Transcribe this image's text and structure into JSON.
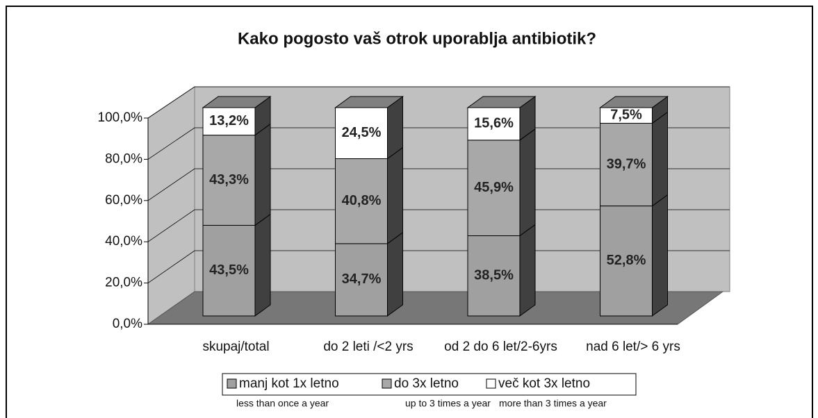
{
  "chart_data": {
    "type": "bar3d_stacked",
    "title": "Kako pogosto vaš otrok uporablja antibiotik?",
    "categories": [
      "skupaj/total",
      "do 2 leti /<2 yrs",
      "od 2 do 6 let/2-6yrs",
      "nad 6 let/> 6 yrs"
    ],
    "series": [
      {
        "name": "manj kot 1x letno",
        "color": "#a0a0a0",
        "values": [
          43.5,
          34.7,
          38.5,
          52.8
        ],
        "value_labels": [
          "43,5%",
          "34,7%",
          "38,5%",
          "52,8%"
        ]
      },
      {
        "name": "do 3x letno",
        "color": "#a8a8a8",
        "values": [
          43.3,
          40.8,
          45.9,
          39.7
        ],
        "value_labels": [
          "43,3%",
          "40,8%",
          "45,9%",
          "39,7%"
        ]
      },
      {
        "name": "več kot 3x letno",
        "color": "#ffffff",
        "values": [
          13.2,
          24.5,
          15.6,
          7.5
        ],
        "value_labels": [
          "13,2%",
          "24,5%",
          "15,6%",
          "7,5%"
        ]
      }
    ],
    "legend_sublabels": [
      "less than once a year",
      "up to 3 times a year",
      "more than 3 times a year"
    ],
    "ylim": [
      0,
      100
    ],
    "yticks": [
      {
        "value": 0,
        "label": "0,0%"
      },
      {
        "value": 20,
        "label": "20,0%"
      },
      {
        "value": 40,
        "label": "40,0%"
      },
      {
        "value": 60,
        "label": "60,0%"
      },
      {
        "value": 80,
        "label": "80,0%"
      },
      {
        "value": 100,
        "label": "100,0%"
      }
    ],
    "grid": true
  }
}
